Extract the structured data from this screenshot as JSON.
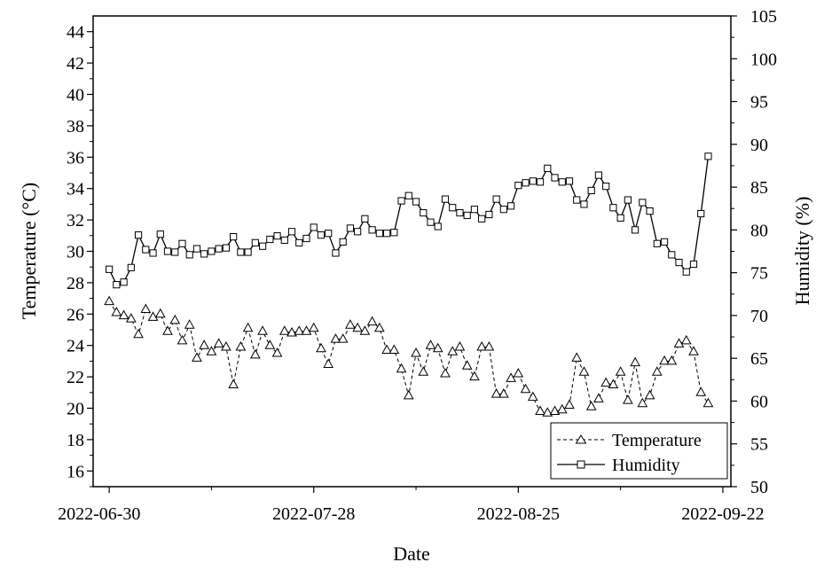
{
  "chart_data": {
    "type": "line",
    "title": "",
    "xlabel": "Date",
    "ylabel_left": "Temperature (°C)",
    "ylabel_right": "Humidity (%)",
    "x_start": "2022-06-30",
    "x_end": "2022-09-22",
    "x_ticks": [
      "2022-06-30",
      "2022-07-28",
      "2022-08-25",
      "2022-09-22"
    ],
    "ylim_left": [
      15,
      45
    ],
    "yticks_left": [
      16,
      18,
      20,
      22,
      24,
      26,
      28,
      30,
      32,
      34,
      36,
      38,
      40,
      42,
      44
    ],
    "ylim_right": [
      50,
      105
    ],
    "yticks_right": [
      50,
      55,
      60,
      65,
      70,
      75,
      80,
      85,
      90,
      95,
      100,
      105
    ],
    "grid": false,
    "legend_position": "bottom-right",
    "series": [
      {
        "name": "Temperature",
        "axis": "left",
        "line": "dashed",
        "marker": "triangle",
        "color": "#000000",
        "values": [
          26.8,
          26.1,
          25.9,
          25.7,
          24.7,
          26.3,
          25.8,
          26.0,
          24.9,
          25.6,
          24.3,
          25.3,
          23.2,
          24.0,
          23.6,
          24.1,
          23.9,
          21.5,
          23.9,
          25.1,
          23.4,
          24.9,
          24.0,
          23.5,
          24.9,
          24.8,
          24.9,
          24.9,
          25.1,
          23.8,
          22.8,
          24.4,
          24.4,
          25.3,
          25.1,
          24.9,
          25.5,
          25.1,
          23.7,
          23.7,
          22.5,
          20.8,
          23.5,
          22.3,
          24.0,
          23.8,
          22.2,
          23.6,
          23.9,
          22.7,
          22.0,
          23.9,
          23.9,
          20.9,
          20.9,
          21.9,
          22.2,
          21.2,
          20.7,
          19.8,
          19.7,
          19.8,
          19.9,
          20.2,
          23.2,
          22.3,
          20.1,
          20.6,
          21.6,
          21.5,
          22.3,
          20.5,
          22.9,
          20.3,
          20.8,
          22.3,
          23.0,
          23.0,
          24.1,
          24.3,
          23.6,
          21.0,
          20.3
        ]
      },
      {
        "name": "Humidity",
        "axis": "right",
        "line": "solid",
        "marker": "square",
        "color": "#000000",
        "values": [
          75.4,
          73.6,
          73.9,
          75.6,
          79.4,
          77.7,
          77.3,
          79.5,
          77.5,
          77.4,
          78.4,
          77.1,
          77.8,
          77.2,
          77.5,
          77.8,
          77.9,
          79.2,
          77.4,
          77.4,
          78.5,
          78.1,
          78.9,
          79.3,
          78.8,
          79.8,
          78.5,
          79.0,
          80.3,
          79.4,
          79.6,
          77.3,
          78.6,
          80.2,
          79.8,
          81.3,
          80.0,
          79.6,
          79.6,
          79.7,
          83.4,
          84.0,
          83.3,
          82.0,
          80.9,
          80.4,
          83.6,
          82.6,
          82.0,
          81.7,
          82.4,
          81.3,
          81.8,
          83.6,
          82.4,
          82.8,
          85.2,
          85.5,
          85.7,
          85.6,
          87.2,
          86.1,
          85.6,
          85.7,
          83.5,
          83.0,
          84.6,
          86.4,
          85.1,
          82.6,
          81.4,
          83.5,
          80.0,
          83.2,
          82.2,
          78.4,
          78.6,
          77.1,
          76.2,
          75.1,
          76.0,
          81.9,
          88.6
        ]
      }
    ]
  }
}
